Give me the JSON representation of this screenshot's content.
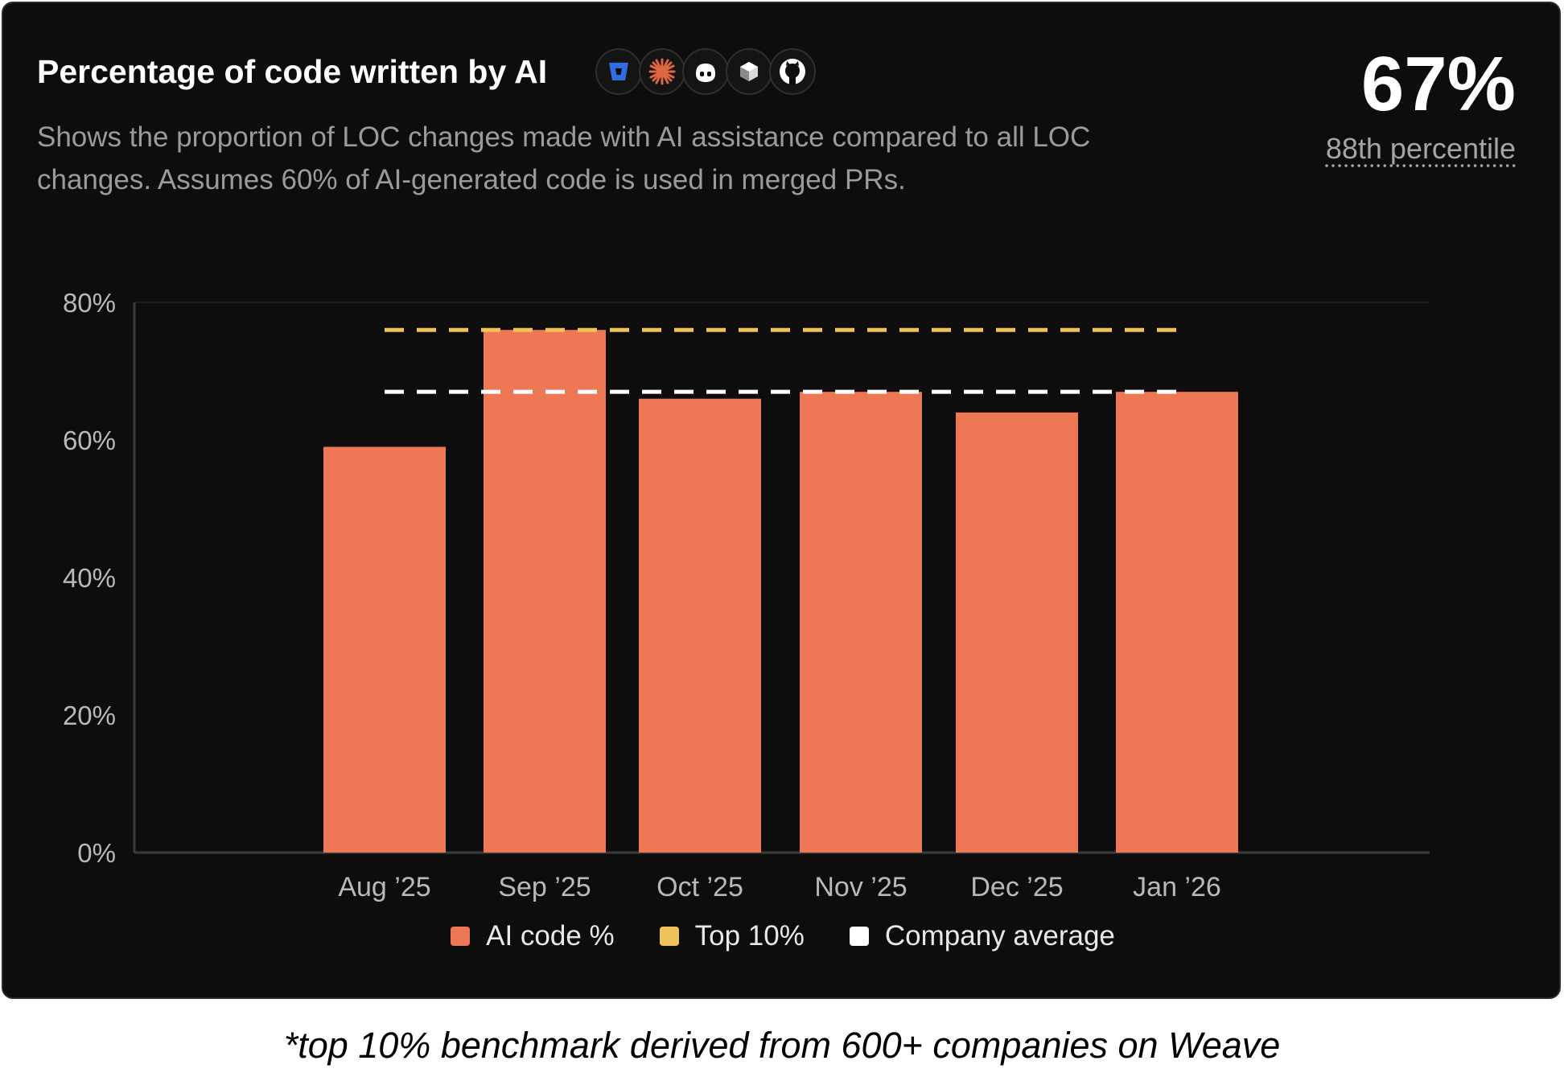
{
  "card": {
    "title": "Percentage of code written by AI",
    "description": "Shows the proportion of LOC changes made with AI assistance compared to all LOC changes. Assumes 60% of AI-generated code is used in merged PRs.",
    "headline_value": "67%",
    "percentile_label": "88th percentile",
    "source_icons": [
      "bitbucket-icon",
      "claude-icon",
      "copilot-icon",
      "cursor-icon",
      "github-icon"
    ]
  },
  "colors": {
    "card_background": "#0d0d0d",
    "bar": "#ee7756",
    "top10_line": "#f0c35a",
    "company_avg_line": "#ffffff",
    "axis": "#3a3a3a",
    "tick_text": "#b9b9b9",
    "bitbucket": "#2f6de1",
    "claude": "#e0663f"
  },
  "chart_data": {
    "type": "bar",
    "categories": [
      "Aug ’25",
      "Sep ’25",
      "Oct ’25",
      "Nov ’25",
      "Dec ’25",
      "Jan ’26"
    ],
    "series": [
      {
        "name": "AI code %",
        "values": [
          59,
          76,
          66,
          67,
          64,
          67
        ]
      }
    ],
    "reference_lines": [
      {
        "name": "Top 10%",
        "value": 76
      },
      {
        "name": "Company average",
        "value": 67
      }
    ],
    "ylim": [
      0,
      80
    ],
    "yticks": [
      0,
      20,
      40,
      60,
      80
    ],
    "ytick_labels": [
      "0%",
      "20%",
      "40%",
      "60%",
      "80%"
    ],
    "legend": [
      "AI code %",
      "Top 10%",
      "Company average"
    ],
    "legend_position": "bottom",
    "grid": false
  },
  "footnote": "*top 10% benchmark derived from 600+ companies on Weave"
}
